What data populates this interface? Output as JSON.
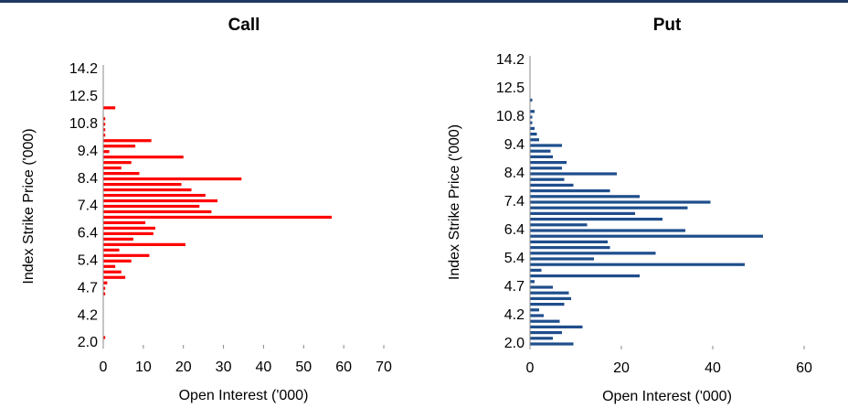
{
  "chart_data": [
    {
      "type": "hbar",
      "title": "Call",
      "xlabel": "Open Interest ('000)",
      "ylabel": "Index Strike Price ('000)",
      "color": "#ff0000",
      "categories": [
        "2.0",
        null,
        null,
        null,
        null,
        "4.2",
        null,
        null,
        null,
        null,
        "4.7",
        null,
        null,
        null,
        null,
        "5.4",
        null,
        null,
        null,
        null,
        "6.4",
        null,
        null,
        null,
        null,
        "7.4",
        null,
        null,
        null,
        null,
        "8.4",
        null,
        null,
        null,
        null,
        "9.4",
        null,
        null,
        null,
        null,
        "10.8",
        null,
        null,
        null,
        null,
        "12.5",
        null,
        null,
        null,
        null,
        "14.2"
      ],
      "values": [
        0,
        0.5,
        0,
        0,
        0,
        0,
        0,
        0,
        0,
        0.5,
        0.5,
        1,
        5.5,
        4.5,
        3,
        7,
        11.5,
        4,
        20.5,
        7.5,
        12.5,
        13,
        10.5,
        57,
        27,
        24,
        28.5,
        25.5,
        22,
        19.5,
        34.5,
        9,
        4.5,
        7,
        20,
        1.5,
        8,
        12,
        0.5,
        0.5,
        0.5,
        0.5,
        0,
        3,
        0,
        0,
        0,
        0,
        0,
        0,
        0
      ],
      "xlim": [
        0,
        70
      ],
      "xticks": [
        0,
        10,
        20,
        30,
        40,
        50,
        60,
        70
      ]
    },
    {
      "type": "hbar",
      "title": "Put",
      "xlabel": "Open Interest ('000)",
      "ylabel": "Index Strike Price ('000)",
      "color": "#1f4e8c",
      "categories": [
        "2.0",
        null,
        null,
        null,
        null,
        "4.2",
        null,
        null,
        null,
        null,
        "4.7",
        null,
        null,
        null,
        null,
        "5.4",
        null,
        null,
        null,
        null,
        "6.4",
        null,
        null,
        null,
        null,
        "7.4",
        null,
        null,
        null,
        null,
        "8.4",
        null,
        null,
        null,
        null,
        "9.4",
        null,
        null,
        null,
        null,
        "10.8",
        null,
        null,
        null,
        null,
        "12.5",
        null,
        null,
        null,
        null,
        "14.2"
      ],
      "values": [
        9.5,
        5,
        7,
        11.5,
        6.5,
        3,
        2,
        7.5,
        9,
        8.5,
        5,
        1,
        24,
        2.5,
        47,
        14,
        27.5,
        17.5,
        17,
        51,
        34,
        12.5,
        29,
        23,
        34.5,
        39.5,
        24,
        17.5,
        9.5,
        7.5,
        19,
        7,
        8,
        5,
        4.5,
        7,
        2,
        1.5,
        1,
        0.5,
        0.5,
        1,
        0,
        0.5,
        0,
        0,
        0,
        0,
        0,
        0,
        0
      ],
      "xlim": [
        0,
        60
      ],
      "xticks": [
        0,
        20,
        40,
        60
      ]
    }
  ]
}
